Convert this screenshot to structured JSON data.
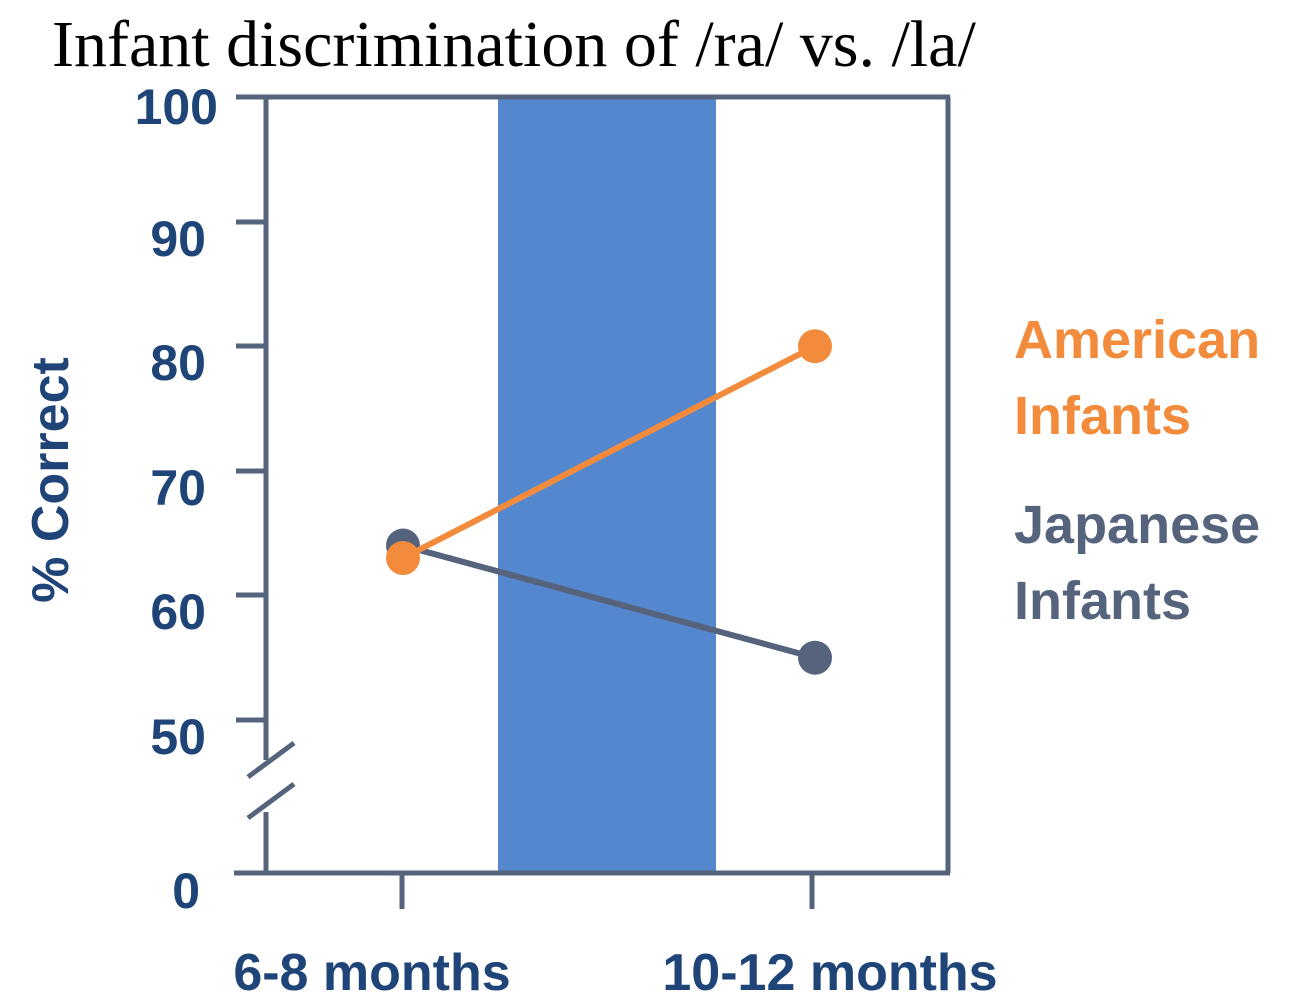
{
  "chart_data": {
    "type": "line",
    "title": "Infant discrimination of /ra/ vs. /la/",
    "ylabel": "% Correct",
    "xlabel": "",
    "categories": [
      "6-8 months",
      "10-12 months"
    ],
    "y_ticks": [
      "100",
      "90",
      "80",
      "70",
      "60",
      "50",
      "0"
    ],
    "axis_break": "between 0 and 50",
    "grid": false,
    "highlight_band": {
      "from_category": "6-8 months",
      "to_category": "10-12 months",
      "color": "#5587cf"
    },
    "series": [
      {
        "name": "American Infants",
        "name_lines": [
          "American",
          "Infants"
        ],
        "color": "#f28c3c",
        "values": [
          63,
          80
        ]
      },
      {
        "name": "Japanese Infants",
        "name_lines": [
          "Japanese",
          "Infants"
        ],
        "color": "#55637d",
        "values": [
          64,
          55
        ]
      }
    ],
    "legend_placement": "right"
  }
}
